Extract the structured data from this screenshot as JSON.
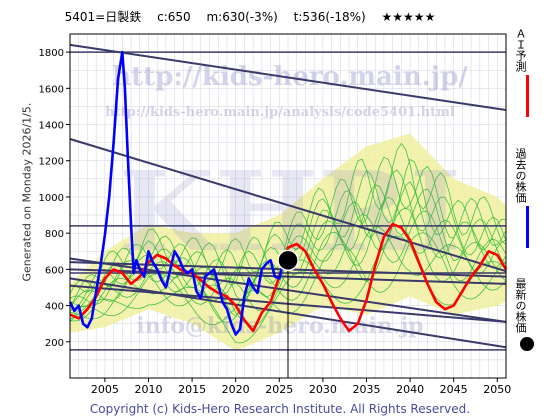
{
  "header": {
    "ticker": "5401=日製鉄",
    "current": "c:650",
    "midterm": "m:630(-3%)",
    "target": "t:536(-18%)",
    "rating": "★★★★★"
  },
  "side_note": "Generated on Monday 2026/1/5.",
  "footer": "Copyright (c) Kids-Hero Research Institute. All Rights Reserved.",
  "watermarks": {
    "url": "http://kids-hero.main.jp/",
    "analysis_url": "http://kids-hero.main.jp/analysis/code5401.html",
    "brand": "KHRI",
    "email": "info@kids-hero.main.jp"
  },
  "legend": [
    {
      "label": "ＡＩ予測",
      "color": "#ff0000"
    },
    {
      "label": "過去の株価",
      "color": "#0000ff"
    },
    {
      "label": "最新の株価",
      "color": "#000000"
    }
  ],
  "colors": {
    "past": "#0000ff",
    "forecast": "#ff0000",
    "band_fill": "#f0f0a0",
    "band_lines": "#33bb33",
    "channel": "#3a3a6a",
    "grid": "#d0d0e0"
  },
  "chart_data": {
    "type": "line",
    "xlim": [
      2001,
      2051
    ],
    "ylim": [
      0,
      1900
    ],
    "x_ticks": [
      2005,
      2010,
      2015,
      2020,
      2025,
      2030,
      2035,
      2040,
      2045,
      2050
    ],
    "y_ticks": [
      200,
      400,
      600,
      800,
      1000,
      1200,
      1400,
      1600,
      1800
    ],
    "latest": {
      "x": 2026.0,
      "y": 650
    },
    "series": [
      {
        "name": "過去の株価",
        "x": [
          2001.0,
          2001.5,
          2002.0,
          2002.5,
          2003.0,
          2003.5,
          2004.0,
          2004.5,
          2005.0,
          2005.5,
          2006.0,
          2006.5,
          2007.0,
          2007.3,
          2007.6,
          2008.0,
          2008.3,
          2008.6,
          2009.0,
          2009.5,
          2010.0,
          2010.5,
          2011.0,
          2011.5,
          2012.0,
          2012.5,
          2013.0,
          2013.5,
          2014.0,
          2014.5,
          2015.0,
          2015.5,
          2016.0,
          2016.5,
          2017.0,
          2017.5,
          2018.0,
          2018.5,
          2019.0,
          2019.5,
          2020.0,
          2020.5,
          2021.0,
          2021.5,
          2022.0,
          2022.5,
          2023.0,
          2023.5,
          2024.0,
          2024.5,
          2025.0,
          2025.5,
          2026.0
        ],
        "y": [
          420,
          370,
          400,
          300,
          280,
          330,
          480,
          620,
          790,
          1000,
          1300,
          1650,
          1800,
          1600,
          1250,
          850,
          580,
          650,
          600,
          560,
          700,
          640,
          600,
          540,
          500,
          600,
          700,
          660,
          600,
          580,
          600,
          480,
          440,
          560,
          580,
          600,
          520,
          420,
          380,
          300,
          240,
          270,
          450,
          550,
          500,
          470,
          600,
          630,
          650,
          560,
          550,
          640,
          650
        ]
      },
      {
        "name": "ＡＩ予測",
        "x": [
          2001.0,
          2002.0,
          2003.0,
          2004.0,
          2005.0,
          2006.0,
          2007.0,
          2008.0,
          2009.0,
          2010.0,
          2011.0,
          2012.0,
          2013.0,
          2014.0,
          2015.0,
          2016.0,
          2017.0,
          2018.0,
          2019.0,
          2020.0,
          2021.0,
          2022.0,
          2023.0,
          2024.0,
          2025.0,
          2026.0,
          2027.0,
          2028.0,
          2029.0,
          2030.0,
          2031.0,
          2032.0,
          2033.0,
          2034.0,
          2035.0,
          2036.0,
          2037.0,
          2038.0,
          2039.0,
          2040.0,
          2041.0,
          2042.0,
          2043.0,
          2044.0,
          2045.0,
          2046.0,
          2047.0,
          2048.0,
          2049.0,
          2050.0,
          2051.0
        ],
        "y": [
          350,
          330,
          380,
          450,
          550,
          600,
          580,
          520,
          560,
          640,
          680,
          660,
          620,
          590,
          580,
          540,
          500,
          470,
          450,
          400,
          320,
          260,
          360,
          420,
          560,
          720,
          740,
          700,
          600,
          520,
          420,
          330,
          260,
          300,
          430,
          620,
          780,
          850,
          830,
          760,
          640,
          520,
          420,
          380,
          400,
          480,
          560,
          620,
          700,
          680,
          600
        ]
      }
    ],
    "band": {
      "x": [
        2001,
        2005,
        2010,
        2015,
        2020,
        2025,
        2030,
        2035,
        2040,
        2045,
        2050,
        2051
      ],
      "upper": [
        520,
        700,
        850,
        800,
        800,
        900,
        1100,
        1280,
        1350,
        1100,
        1000,
        950
      ],
      "lower": [
        250,
        280,
        380,
        300,
        150,
        250,
        400,
        350,
        450,
        350,
        400,
        420
      ]
    },
    "channel_lines": [
      {
        "x": [
          2001,
          2051
        ],
        "y": [
          1840,
          1480
        ]
      },
      {
        "x": [
          2001,
          2051
        ],
        "y": [
          1320,
          590
        ]
      },
      {
        "x": [
          2001,
          2051
        ],
        "y": [
          660,
          310
        ]
      },
      {
        "x": [
          2001,
          2051
        ],
        "y": [
          550,
          170
        ]
      },
      {
        "x": [
          2001,
          2051
        ],
        "y": [
          640,
          560
        ]
      },
      {
        "x": [
          2001,
          2051
        ],
        "y": [
          600,
          520
        ]
      },
      {
        "x": [
          2001,
          2051
        ],
        "y": [
          510,
          310
        ]
      }
    ],
    "hlines": [
      1800,
      840,
      580,
      155
    ]
  }
}
